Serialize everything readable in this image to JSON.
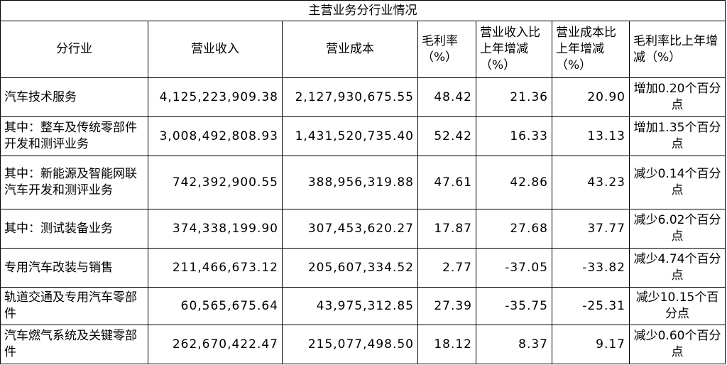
{
  "header": {
    "title": "主营业务分行业情况"
  },
  "table": {
    "columns": [
      "分行业",
      "营业收入",
      "营业成本",
      "毛利率（%）",
      "营业收入比上年增减（%）",
      "营业成本比上年增减（%）",
      "毛利率比上年增减（%）"
    ],
    "rows": [
      [
        "汽车技术服务",
        "4,125,223,909.38",
        "2,127,930,675.55",
        "48.42",
        "21.36",
        "20.90",
        "增加0.20个百分点"
      ],
      [
        "其中：整车及传统零部件开发和测评业务",
        "3,008,492,808.93",
        "1,431,520,735.40",
        "52.42",
        "16.33",
        "13.13",
        "增加1.35个百分点"
      ],
      [
        "其中：新能源及智能网联汽车开发和测评业务",
        "742,392,900.55",
        "388,956,319.88",
        "47.61",
        "42.86",
        "43.23",
        "减少0.14个百分点"
      ],
      [
        "其中：测试装备业务",
        "374,338,199.90",
        "307,453,620.27",
        "17.87",
        "27.68",
        "37.77",
        "减少6.02个百分点"
      ],
      [
        "专用汽车改装与销售",
        "211,466,673.12",
        "205,607,334.52",
        "2.77",
        "-37.05",
        "-33.82",
        "减少4.74个百分点"
      ],
      [
        "轨道交通及专用汽车零部件",
        "60,565,675.64",
        "43,975,312.85",
        "27.39",
        "-35.75",
        "-25.31",
        "减少10.15个百分点"
      ],
      [
        "汽车燃气系统及关键零部件",
        "262,670,422.47",
        "215,077,498.50",
        "18.12",
        "8.37",
        "9.17",
        "减少0.60个百分点"
      ]
    ]
  }
}
